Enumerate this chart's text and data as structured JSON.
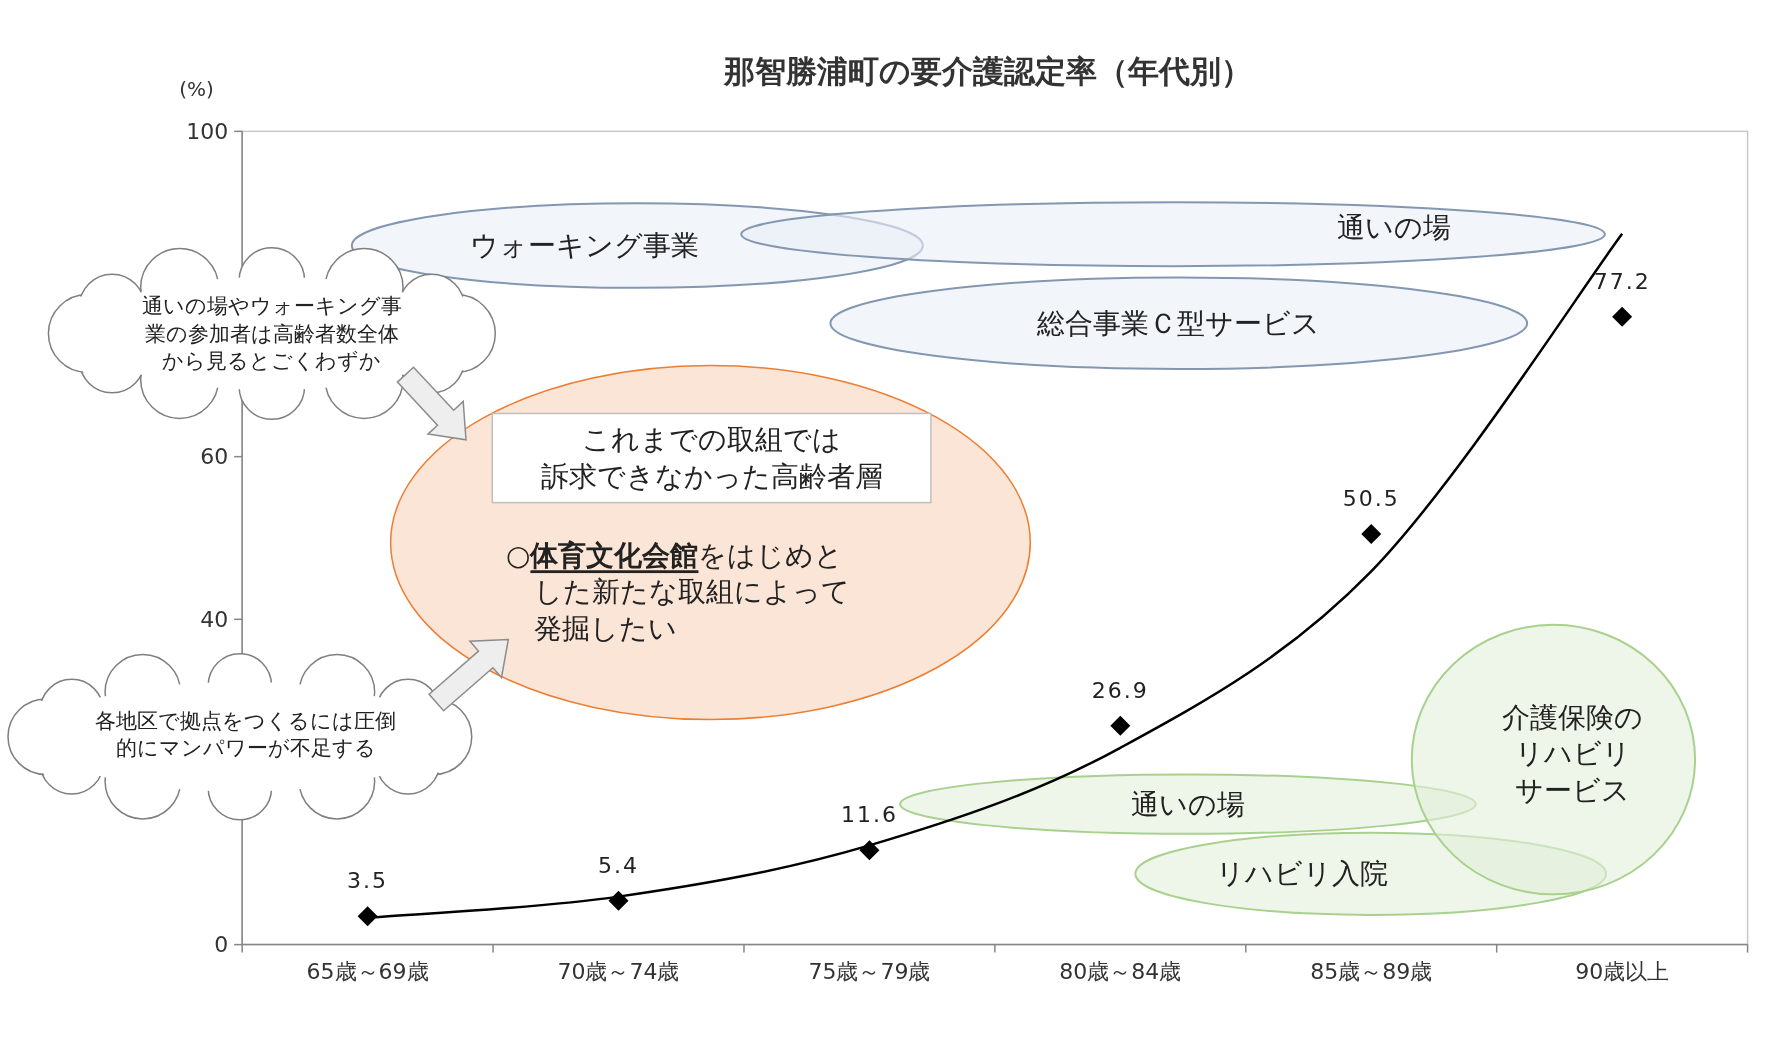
{
  "chart_data": {
    "type": "scatter",
    "title": "那智勝浦町の要介護認定率（年代別）",
    "ylabel": "(%)",
    "categories": [
      "65歳～69歳",
      "70歳～74歳",
      "75歳～79歳",
      "80歳～84歳",
      "85歳～89歳",
      "90歳以上"
    ],
    "ylim": [
      0,
      100
    ],
    "yticks": [
      0,
      {
        "value": 20,
        "label": null
      },
      40,
      60,
      {
        "value": 80,
        "label": null
      },
      100
    ],
    "grid": false,
    "series": [
      {
        "type": "line",
        "color": "#000000",
        "x": [
          "65歳～69歳",
          "70歳～74歳",
          "75歳～79歳",
          "80歳～84歳",
          "85歳～89歳",
          "90歳以上"
        ],
        "values": [
          3.3,
          5.9,
          12.2,
          24.2,
          45.9,
          87.4
        ],
        "marker": "none",
        "line_style": "solid"
      },
      {
        "color": "#000000",
        "marker": "diamond",
        "values": [
          3.5,
          5.4,
          11.6,
          26.9,
          50.5,
          77.2
        ],
        "value_labels": [
          "3.5",
          "5.4",
          "11.6",
          "26.9",
          "50.5",
          "77.2"
        ]
      }
    ],
    "annotations": [
      "ウォーキング事業",
      "通いの場",
      "総合事業Ｃ型サービス",
      "通いの場やウォーキング事業の参加者は高齢者数全体から見るとごくわずか",
      "これまでの取組では訴求できなかった高齢者層",
      "○体育文化会館をはじめとした新たな取組によって発掘したい",
      "各地区で拠点をつくるには圧倒的にマンパワーが不足する",
      "通いの場",
      "リハビリ入院",
      "介護保険のリハビリサービス"
    ]
  }
}
